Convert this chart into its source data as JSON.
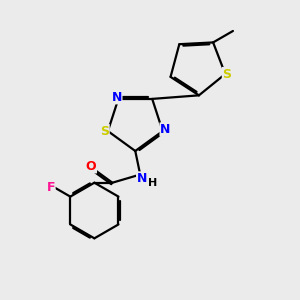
{
  "background_color": "#ebebeb",
  "bond_color": "#000000",
  "atom_colors": {
    "S_thio": "#cccc00",
    "S_td": "#cccc00",
    "N": "#0000ff",
    "O": "#ff0000",
    "F": "#ff1493",
    "C": "#000000",
    "H": "#000000"
  },
  "figsize": [
    3.0,
    3.0
  ],
  "dpi": 100,
  "lw": 1.6,
  "font_size": 9
}
